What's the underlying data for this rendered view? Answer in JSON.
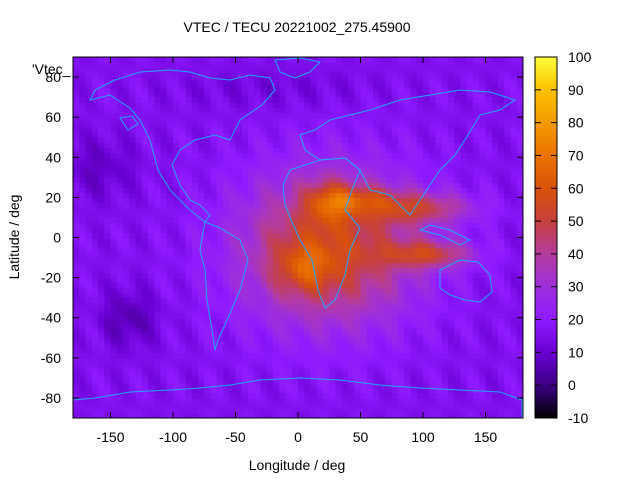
{
  "chart_data": {
    "type": "heatmap",
    "title": "VTEC / TECU 20221002_275.45900",
    "xlabel": "Longitude / deg",
    "ylabel": "Latitude / deg",
    "series_key": "'Vtec_",
    "xlim": [
      -180,
      180
    ],
    "ylim": [
      -90,
      90
    ],
    "xticks": [
      -150,
      -100,
      -50,
      0,
      50,
      100,
      150
    ],
    "yticks": [
      -80,
      -60,
      -40,
      -20,
      0,
      20,
      40,
      60,
      80
    ],
    "colorbar": {
      "min": -10,
      "max": 100,
      "ticks": [
        -10,
        0,
        10,
        20,
        30,
        40,
        50,
        60,
        70,
        80,
        90,
        100
      ],
      "palette": [
        "#000000",
        "#3b0083",
        "#6a00d3",
        "#8f1aff",
        "#9e2fdc",
        "#b43c9d",
        "#c6403d",
        "#d9520a",
        "#ea7300",
        "#f49a00",
        "#fbc200",
        "#ffe800",
        "#ffff3d"
      ]
    },
    "grid": false,
    "coastline_color": "#1ea9ff"
  }
}
